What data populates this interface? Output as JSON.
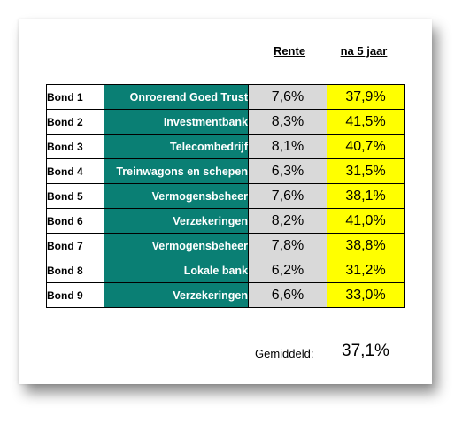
{
  "headers": {
    "rente": "Rente",
    "five_year": "na 5 jaar"
  },
  "rows": [
    {
      "id": "Bond 1",
      "name": "Onroerend Goed Trust",
      "rate": "7,6%",
      "five_year": "37,9%"
    },
    {
      "id": "Bond 2",
      "name": "Investmentbank",
      "rate": "8,3%",
      "five_year": "41,5%"
    },
    {
      "id": "Bond 3",
      "name": "Telecombedrijf",
      "rate": "8,1%",
      "five_year": "40,7%"
    },
    {
      "id": "Bond 4",
      "name": "Treinwagons en schepen",
      "rate": "6,3%",
      "five_year": "31,5%"
    },
    {
      "id": "Bond 5",
      "name": "Vermogensbeheer",
      "rate": "7,6%",
      "five_year": "38,1%"
    },
    {
      "id": "Bond 6",
      "name": "Verzekeringen",
      "rate": "8,2%",
      "five_year": "41,0%"
    },
    {
      "id": "Bond 7",
      "name": "Vermogensbeheer",
      "rate": "7,8%",
      "five_year": "38,8%"
    },
    {
      "id": "Bond 8",
      "name": "Lokale bank",
      "rate": "6,2%",
      "five_year": "31,2%"
    },
    {
      "id": "Bond 9",
      "name": "Verzekeringen",
      "rate": "6,6%",
      "five_year": "33,0%"
    }
  ],
  "average": {
    "label": "Gemiddeld:",
    "value": "37,1%"
  },
  "colors": {
    "name_cell": "#0a7f74",
    "rate_cell": "#d9d9d9",
    "five_year_cell": "#ffff00"
  }
}
